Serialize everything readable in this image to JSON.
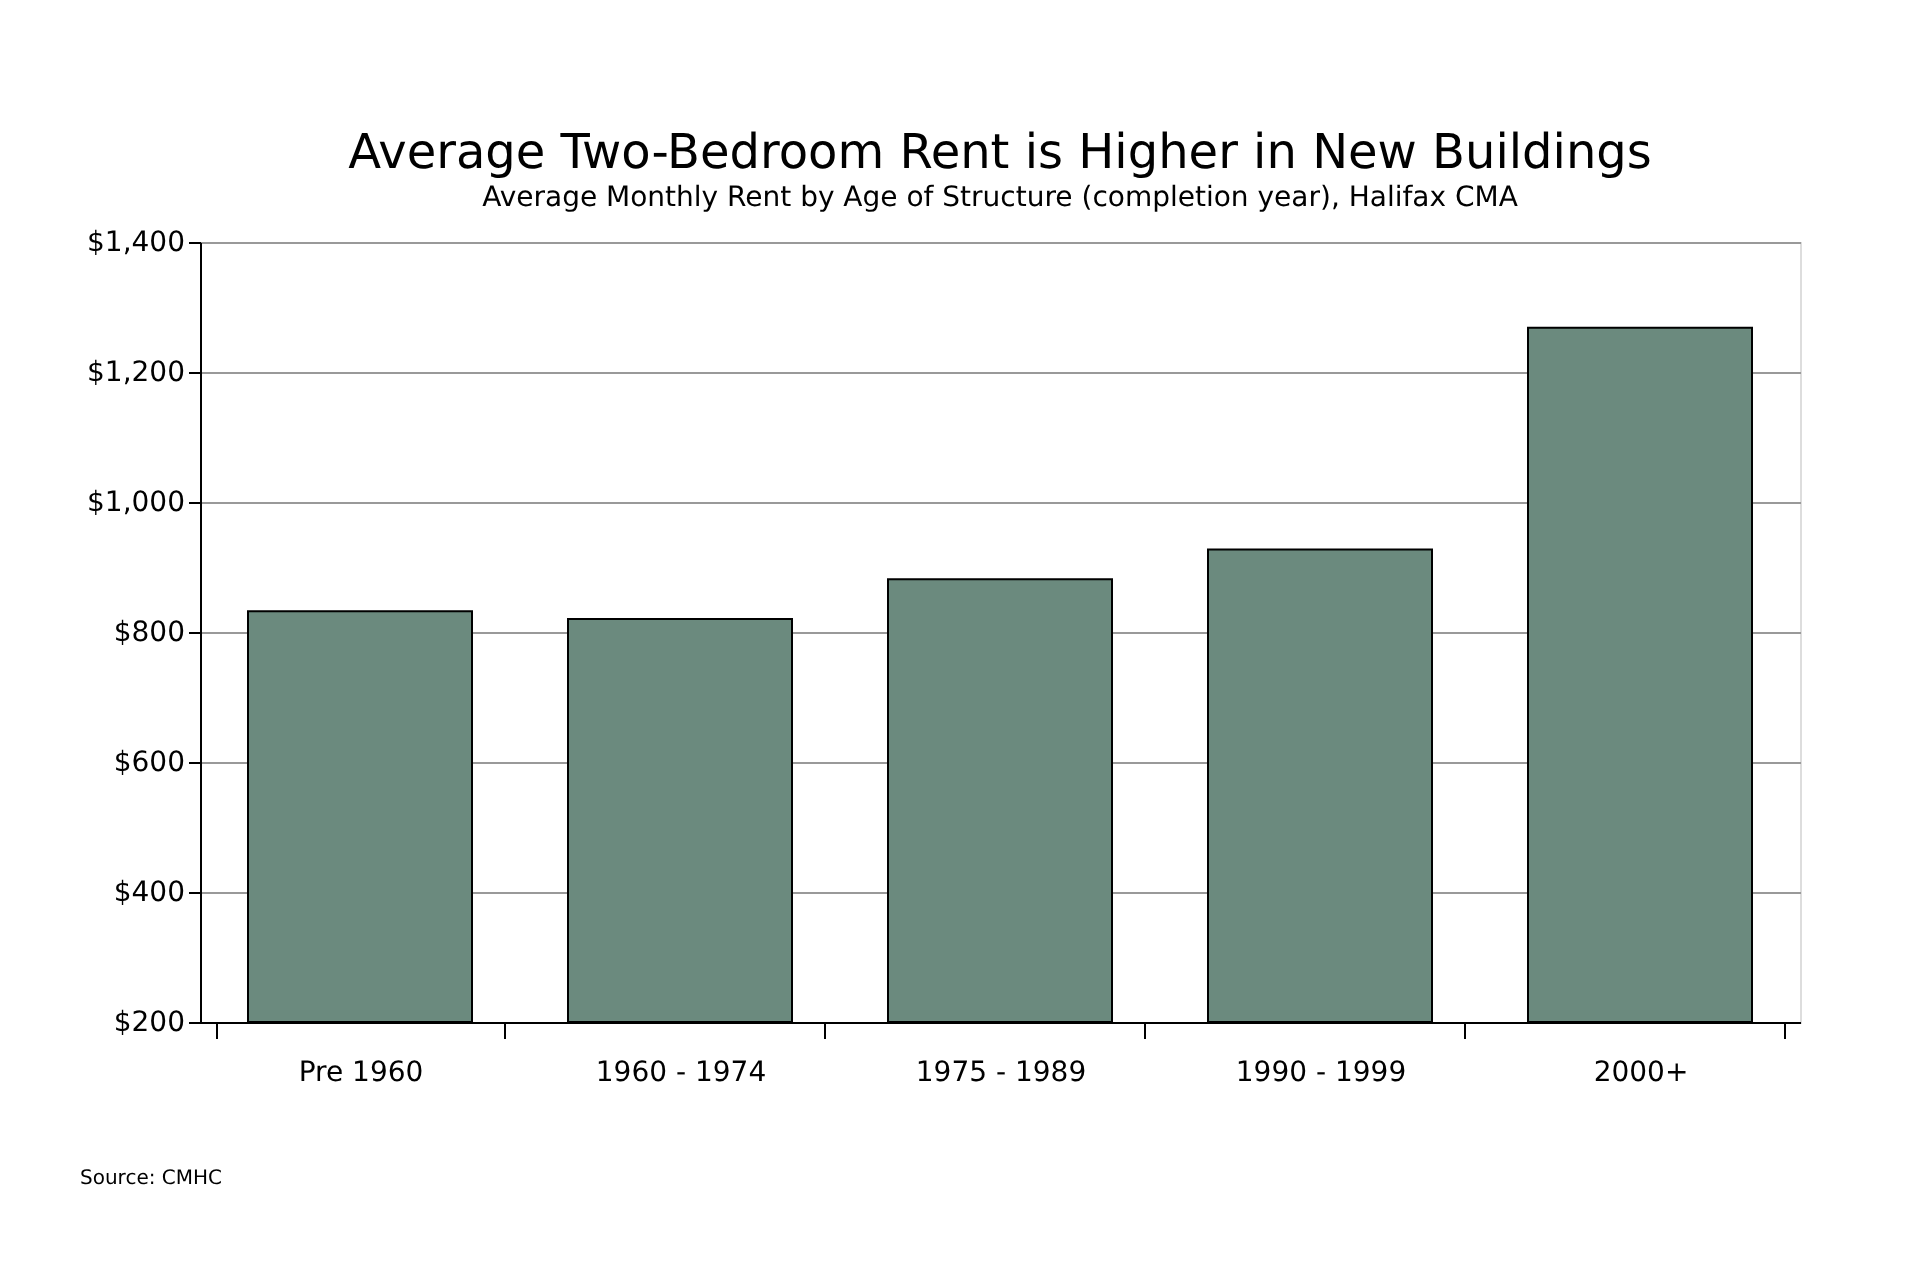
{
  "chart_data": {
    "type": "bar",
    "title": "Average Two-Bedroom Rent is Higher in New Buildings",
    "subtitle": "Average Monthly Rent by Age of Structure (completion year), Halifax CMA",
    "categories": [
      "Pre 1960",
      "1960 - 1974",
      "1975 - 1989",
      "1990 - 1999",
      "2000+"
    ],
    "values": [
      832,
      820,
      881,
      927,
      1268
    ],
    "color": "#6b8a7e",
    "ylim": [
      200,
      1400
    ],
    "yticks": [
      {
        "value": 200,
        "label": "$200"
      },
      {
        "value": 400,
        "label": "$400"
      },
      {
        "value": 600,
        "label": "$600"
      },
      {
        "value": 800,
        "label": "$800"
      },
      {
        "value": 1000,
        "label": "$1,000"
      },
      {
        "value": 1200,
        "label": "$1,200"
      },
      {
        "value": 1400,
        "label": "$1,400"
      }
    ],
    "grid": "y",
    "annotations": [
      "Source: CMHC"
    ]
  }
}
